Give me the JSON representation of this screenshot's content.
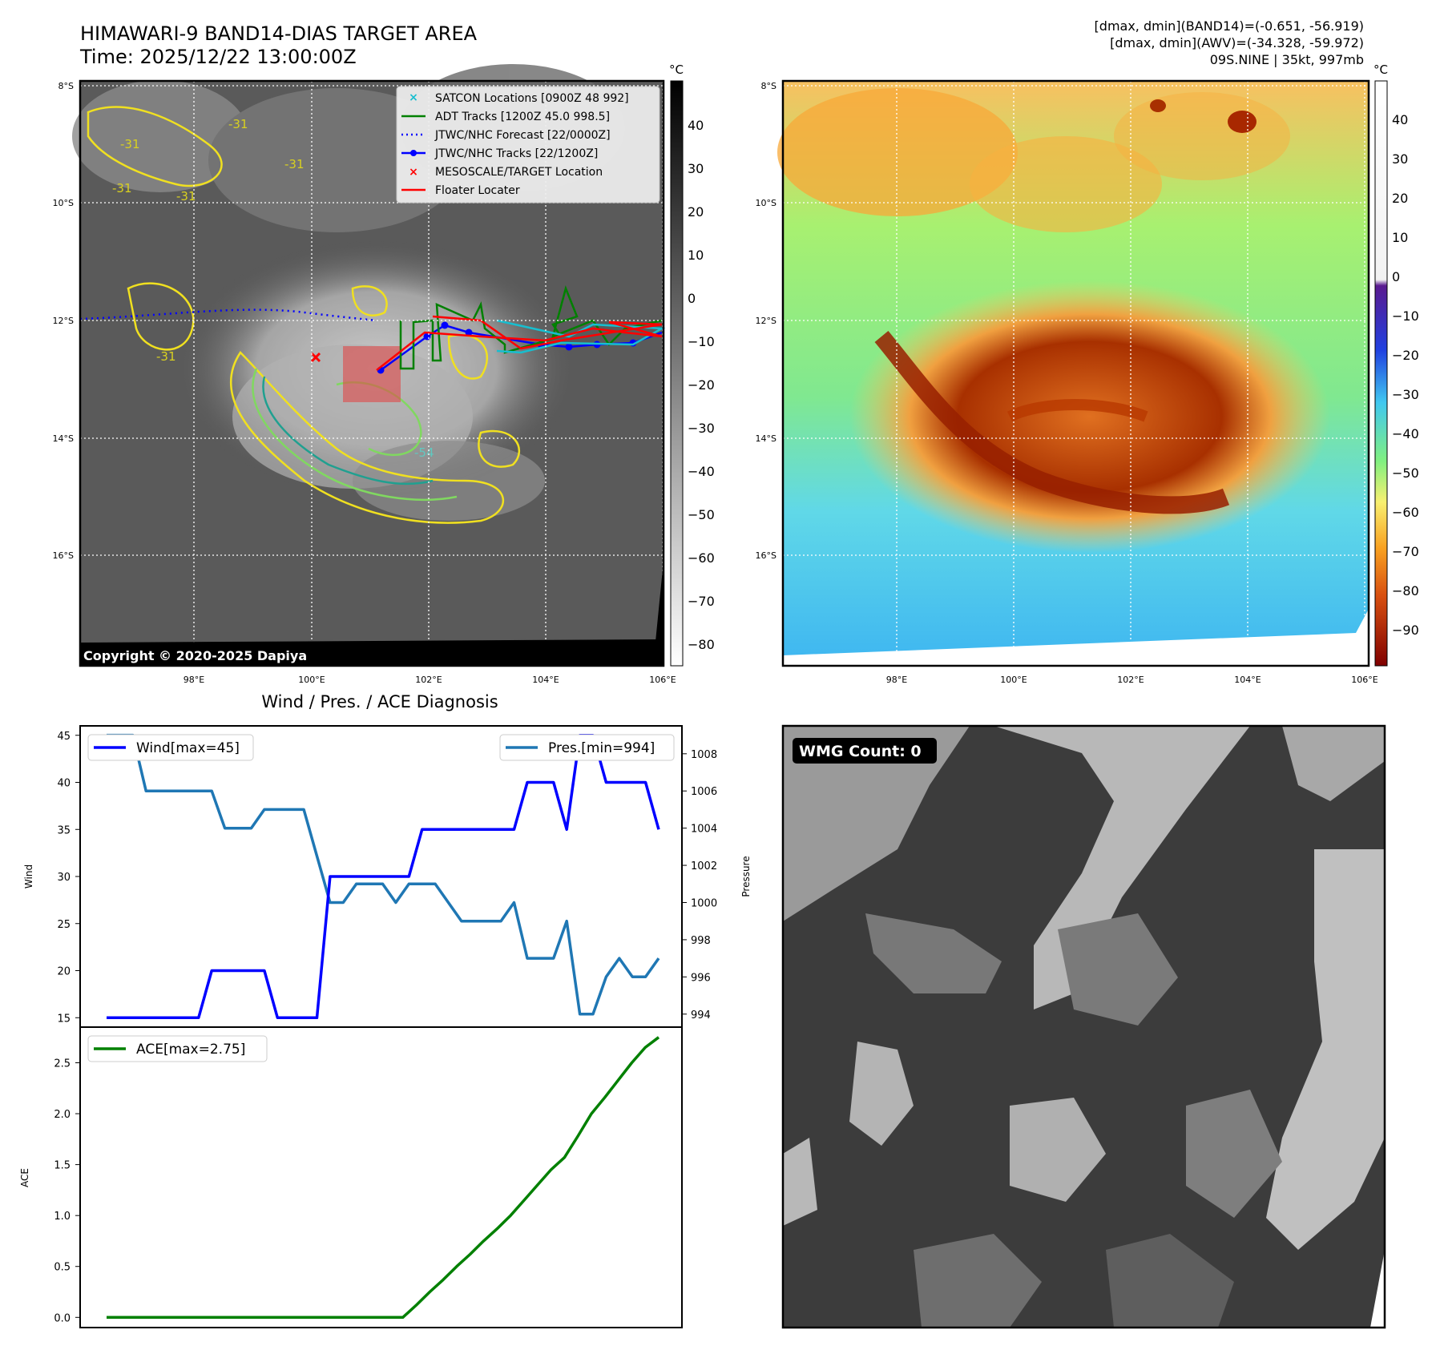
{
  "header": {
    "title_line1": "HIMAWARI-9 BAND14-DIAS TARGET AREA",
    "title_line2": "Time: 2025/12/22 13:00:00Z",
    "info_line1": "[dmax, dmin](BAND14)=(-0.651, -56.919)",
    "info_line2": "[dmax, dmin](AWV)=(-34.328, -59.972)",
    "info_line3": "09S.NINE | 35kt, 997mb"
  },
  "map_axes": {
    "lat_labels": [
      "8°S",
      "10°S",
      "12°S",
      "14°S",
      "16°S"
    ],
    "lon_labels": [
      "98°E",
      "100°E",
      "102°E",
      "104°E",
      "106°E"
    ]
  },
  "ir_panel": {
    "colorbar_unit": "°C",
    "colorbar_ticks": [
      "40",
      "30",
      "20",
      "10",
      "0",
      "−10",
      "−20",
      "−30",
      "−40",
      "−50",
      "−60",
      "−70",
      "−80"
    ],
    "contour_labels": [
      "-31",
      "-31",
      "-31",
      "-31",
      "-31",
      "-31",
      "-54"
    ],
    "legend": [
      {
        "label": "SATCON Locations [0900Z 48 992]",
        "color": "#17becf",
        "marker": "x"
      },
      {
        "label": "ADT Tracks [1200Z 45.0 998.5]",
        "color": "#008000",
        "marker": "line"
      },
      {
        "label": "JTWC/NHC Forecast [22/0000Z]",
        "color": "#0000ff",
        "marker": "dotted"
      },
      {
        "label": "JTWC/NHC Tracks [22/1200Z]",
        "color": "#0000ff",
        "marker": "line-dot"
      },
      {
        "label": "MESOSCALE/TARGET Location",
        "color": "#ff0000",
        "marker": "x"
      },
      {
        "label": "Floater Locater",
        "color": "#ff0000",
        "marker": "line"
      }
    ],
    "copyright": "Copyright © 2020-2025 Dapiya"
  },
  "awv_panel": {
    "colorbar_unit": "°C",
    "colorbar_ticks": [
      "40",
      "30",
      "20",
      "10",
      "0",
      "−10",
      "−20",
      "−30",
      "−40",
      "−50",
      "−60",
      "−70",
      "−80",
      "−90"
    ]
  },
  "wmg_panel": {
    "badge": "WMG Count: 0"
  },
  "chart_data": [
    {
      "type": "line",
      "title": "Wind / Pres. / ACE Diagnosis",
      "ylabel": "Wind",
      "ylabel_right": "Pressure",
      "ylim": [
        14,
        46
      ],
      "ylim_right": [
        993.3,
        1009.5
      ],
      "yticks": [
        15,
        20,
        25,
        30,
        35,
        40,
        45
      ],
      "yticks_right": [
        994,
        996,
        998,
        1000,
        1002,
        1004,
        1006,
        1008
      ],
      "x_count": 47,
      "series": [
        {
          "name": "Wind[max=45]",
          "color": "#0000ff",
          "axis": "left",
          "values": [
            15,
            15,
            15,
            15,
            15,
            15,
            15,
            15,
            20,
            20,
            20,
            20,
            20,
            15,
            15,
            15,
            15,
            30,
            30,
            30,
            30,
            30,
            30,
            30,
            35,
            35,
            35,
            35,
            35,
            35,
            35,
            35,
            40,
            40,
            40,
            35,
            45,
            45,
            40,
            40,
            40,
            40,
            35
          ]
        },
        {
          "name": "Pres.[min=994]",
          "color": "#1f77b4",
          "axis": "right",
          "values": [
            1009,
            1009,
            1009,
            1006,
            1006,
            1006,
            1006,
            1006,
            1006,
            1004,
            1004,
            1004,
            1005,
            1005,
            1005,
            1005,
            1002.5,
            1000,
            1000,
            1001,
            1001,
            1001,
            1000,
            1001,
            1001,
            1001,
            1000,
            999,
            999,
            999,
            999,
            1000,
            997,
            997,
            997,
            999,
            994,
            994,
            996,
            997,
            996,
            996,
            997
          ]
        }
      ],
      "legend": [
        "Wind[max=45]",
        "Pres.[min=994]"
      ]
    },
    {
      "type": "line",
      "ylabel": "ACE",
      "ylim": [
        -0.1,
        2.85
      ],
      "yticks": [
        0.0,
        0.5,
        1.0,
        1.5,
        2.0,
        2.5
      ],
      "ytick_labels": [
        "0.0",
        "0.5",
        "1.0",
        "1.5",
        "2.0",
        "2.5"
      ],
      "series": [
        {
          "name": "ACE[max=2.75]",
          "color": "#008000",
          "values": [
            0,
            0,
            0,
            0,
            0,
            0,
            0,
            0,
            0,
            0,
            0,
            0,
            0,
            0,
            0,
            0,
            0,
            0,
            0,
            0,
            0,
            0,
            0,
            0.12,
            0.25,
            0.37,
            0.5,
            0.62,
            0.75,
            0.87,
            1.0,
            1.15,
            1.3,
            1.45,
            1.57,
            1.78,
            2.0,
            2.16,
            2.33,
            2.5,
            2.65,
            2.75
          ]
        }
      ],
      "legend": [
        "ACE[max=2.75]"
      ]
    }
  ]
}
